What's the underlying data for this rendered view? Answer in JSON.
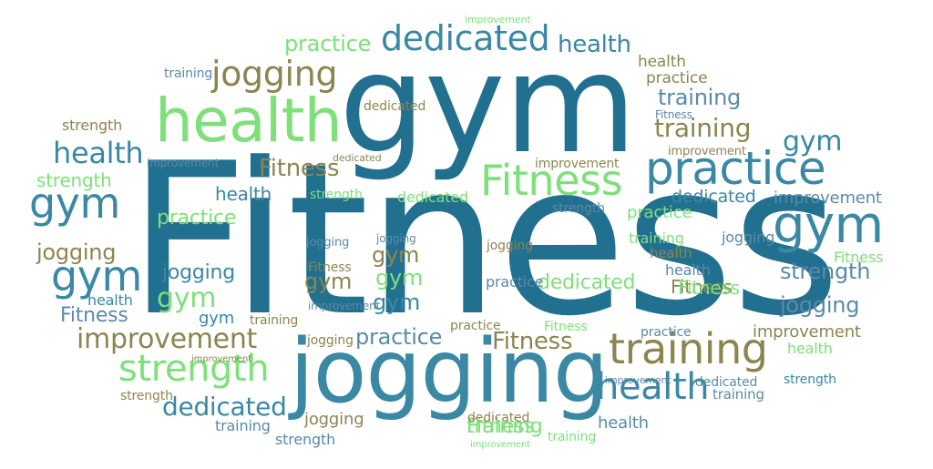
{
  "colors": {
    "teal_dark": "#22708f",
    "teal_mid": "#3a88a3",
    "steel_blue": "#5a8aa8",
    "light_green": "#7ee07a",
    "pale_green": "#9ccf7e",
    "olive": "#8c8550"
  },
  "words": [
    {
      "text": "Fitness",
      "color": "teal_dark",
      "weight": 100
    },
    {
      "text": "gym",
      "color": "teal_dark",
      "weight": 62
    },
    {
      "text": "jogging",
      "color": "teal_mid",
      "weight": 48
    },
    {
      "text": "health",
      "color": "light_green",
      "weight": 34
    },
    {
      "text": "practice",
      "color": "teal_mid",
      "weight": 28
    },
    {
      "text": "training",
      "color": "olive",
      "weight": 26
    },
    {
      "text": "gym",
      "color": "teal_mid",
      "weight": 30
    },
    {
      "text": "Fitness",
      "color": "light_green",
      "weight": 27
    },
    {
      "text": "dedicated",
      "color": "teal_mid",
      "weight": 22
    },
    {
      "text": "health",
      "color": "teal_mid",
      "weight": 22
    },
    {
      "text": "strength",
      "color": "light_green",
      "weight": 22
    },
    {
      "text": "jogging",
      "color": "olive",
      "weight": 22
    },
    {
      "text": "improvement",
      "color": "olive",
      "weight": 18
    },
    {
      "text": "gym",
      "color": "teal_mid",
      "weight": 24
    },
    {
      "text": "gym",
      "color": "teal_mid",
      "weight": 24
    },
    {
      "text": "health",
      "color": "teal_mid",
      "weight": 19
    },
    {
      "text": "Fitness",
      "color": "olive",
      "weight": 17
    },
    {
      "text": "strength",
      "color": "steel_blue",
      "weight": 17
    },
    {
      "text": "dedicated",
      "color": "teal_mid",
      "weight": 17
    },
    {
      "text": "jogging",
      "color": "steel_blue",
      "weight": 16
    },
    {
      "text": "practice",
      "color": "light_green",
      "weight": 17
    },
    {
      "text": "practice",
      "color": "light_green",
      "weight": 15
    },
    {
      "text": "training",
      "color": "steel_blue",
      "weight": 16
    },
    {
      "text": "training",
      "color": "olive",
      "weight": 17
    },
    {
      "text": "jogging",
      "color": "olive",
      "weight": 19
    },
    {
      "text": "health",
      "color": "teal_mid",
      "weight": 16
    },
    {
      "text": "practice",
      "color": "steel_blue",
      "weight": 16
    },
    {
      "text": "Fitness",
      "color": "olive",
      "weight": 16
    },
    {
      "text": "gym",
      "color": "olive",
      "weight": 16
    },
    {
      "text": "gym",
      "color": "olive",
      "weight": 16
    },
    {
      "text": "gym",
      "color": "teal_mid",
      "weight": 16
    },
    {
      "text": "gym",
      "color": "light_green",
      "weight": 16
    },
    {
      "text": "gym",
      "color": "light_green",
      "weight": 16
    },
    {
      "text": "health",
      "color": "teal_mid",
      "weight": 17
    },
    {
      "text": "strength",
      "color": "teal_mid",
      "weight": 17
    },
    {
      "text": "jogging",
      "color": "teal_mid",
      "weight": 16
    },
    {
      "text": "dedicated",
      "color": "light_green",
      "weight": 17
    },
    {
      "text": "Fitness",
      "color": "light_green",
      "weight": 15
    },
    {
      "text": "Fitness",
      "color": "olive",
      "weight": 16
    },
    {
      "text": "jogging",
      "color": "olive",
      "weight": 15
    },
    {
      "text": "dedicated",
      "color": "teal_mid",
      "weight": 16
    },
    {
      "text": "improvement",
      "color": "olive",
      "weight": 14
    },
    {
      "text": "health",
      "color": "light_green",
      "weight": 14
    },
    {
      "text": "practice",
      "color": "light_green",
      "weight": 14
    },
    {
      "text": "Fitness",
      "color": "steel_blue",
      "weight": 14
    },
    {
      "text": "Fitness",
      "color": "light_green",
      "weight": 13
    },
    {
      "text": "training",
      "color": "light_green",
      "weight": 14
    },
    {
      "text": "health",
      "color": "olive",
      "weight": 14
    },
    {
      "text": "health",
      "color": "steel_blue",
      "weight": 14
    },
    {
      "text": "health",
      "color": "steel_blue",
      "weight": 13
    },
    {
      "text": "health",
      "color": "olive",
      "weight": 12
    },
    {
      "text": "practice",
      "color": "olive",
      "weight": 12
    },
    {
      "text": "practice",
      "color": "olive",
      "weight": 12
    },
    {
      "text": "practice",
      "color": "steel_blue",
      "weight": 12
    },
    {
      "text": "practice",
      "color": "steel_blue",
      "weight": 12
    },
    {
      "text": "training",
      "color": "light_green",
      "weight": 12
    },
    {
      "text": "training",
      "color": "steel_blue",
      "weight": 12
    },
    {
      "text": "training",
      "color": "olive",
      "weight": 12
    },
    {
      "text": "training",
      "color": "steel_blue",
      "weight": 12
    },
    {
      "text": "training",
      "color": "steel_blue",
      "weight": 12
    },
    {
      "text": "strength",
      "color": "olive",
      "weight": 12
    },
    {
      "text": "strength",
      "color": "light_green",
      "weight": 12
    },
    {
      "text": "strength",
      "color": "steel_blue",
      "weight": 12
    },
    {
      "text": "strength",
      "color": "olive",
      "weight": 12
    },
    {
      "text": "strength",
      "color": "light_green",
      "weight": 11
    },
    {
      "text": "strength",
      "color": "steel_blue",
      "weight": 11
    },
    {
      "text": "dedicated",
      "color": "olive",
      "weight": 12
    },
    {
      "text": "dedicated",
      "color": "olive",
      "weight": 12
    },
    {
      "text": "dedicated",
      "color": "light_green",
      "weight": 12
    },
    {
      "text": "dedicated",
      "color": "steel_blue",
      "weight": 12
    },
    {
      "text": "dedicated",
      "color": "olive",
      "weight": 12
    },
    {
      "text": "improvement",
      "color": "steel_blue",
      "weight": 12
    },
    {
      "text": "improvement",
      "color": "olive",
      "weight": 12
    },
    {
      "text": "improvement",
      "color": "steel_blue",
      "weight": 12
    },
    {
      "text": "improvement",
      "color": "olive",
      "weight": 12
    },
    {
      "text": "improvement",
      "color": "light_green",
      "weight": 12
    },
    {
      "text": "improvement",
      "color": "steel_blue",
      "weight": 11
    },
    {
      "text": "improvement",
      "color": "olive",
      "weight": 11
    },
    {
      "text": "improvement",
      "color": "light_green",
      "weight": 11
    },
    {
      "text": "improvement",
      "color": "steel_blue",
      "weight": 11
    },
    {
      "text": "Fitness",
      "color": "steel_blue",
      "weight": 12
    },
    {
      "text": "Fitness",
      "color": "olive",
      "weight": 12
    },
    {
      "text": "Fitness",
      "color": "light_green",
      "weight": 12
    },
    {
      "text": "Fitness",
      "color": "light_green",
      "weight": 12
    },
    {
      "text": "jogging",
      "color": "steel_blue",
      "weight": 12
    },
    {
      "text": "jogging",
      "color": "steel_blue",
      "weight": 12
    },
    {
      "text": "jogging",
      "color": "olive",
      "weight": 12
    },
    {
      "text": "jogging",
      "color": "steel_blue",
      "weight": 12
    },
    {
      "text": "jogging",
      "color": "olive",
      "weight": 12
    },
    {
      "text": "gym",
      "color": "teal_mid",
      "weight": 12
    },
    {
      "text": "gym",
      "color": "teal_mid",
      "weight": 12
    },
    {
      "text": "health",
      "color": "teal_mid",
      "weight": 12
    },
    {
      "text": "training",
      "color": "light_green",
      "weight": 12
    }
  ]
}
